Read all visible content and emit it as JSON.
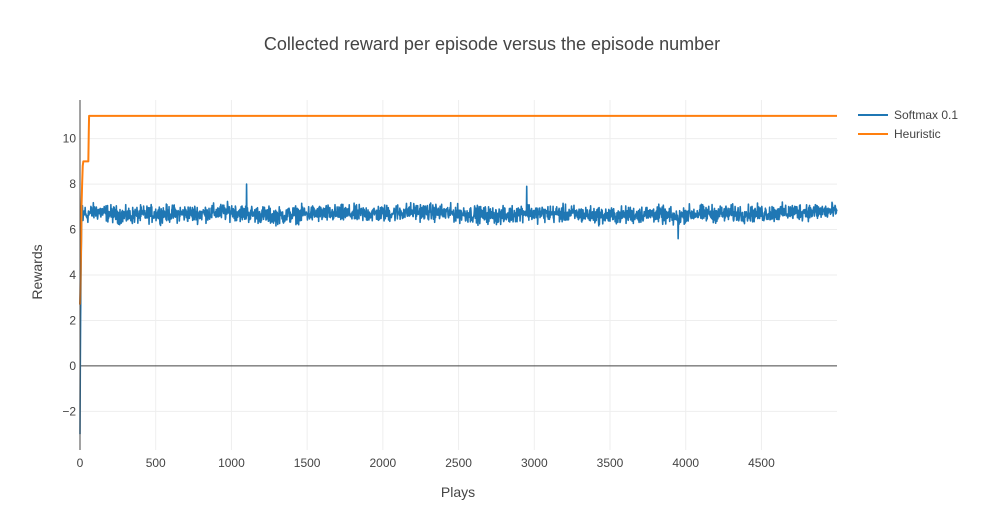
{
  "chart_data": {
    "type": "line",
    "title": "Collected reward per episode versus the episode number",
    "xlabel": "Plays",
    "ylabel": "Rewards",
    "xlim": [
      0,
      4999
    ],
    "ylim": [
      -3.7,
      11.7
    ],
    "x_ticks": [
      0,
      500,
      1000,
      1500,
      2000,
      2500,
      3000,
      3500,
      4000,
      4500
    ],
    "y_ticks": [
      -2,
      0,
      2,
      4,
      6,
      8,
      10
    ],
    "grid": true,
    "zero_line": true,
    "legend": "top-right",
    "series": [
      {
        "name": "Softmax 0.1",
        "color": "#1f77b4",
        "description": "noisy reward, rising from about -3 at play 0 to a steady band around 6.7 (range ~5.6 to ~8.0) from roughly play 10 onward",
        "x": [
          0,
          3,
          6,
          10,
          15,
          20,
          30,
          40,
          60,
          100,
          200,
          300,
          500,
          800,
          1000,
          1100,
          1300,
          1500,
          1800,
          2000,
          2200,
          2500,
          2800,
          2950,
          3000,
          3200,
          3500,
          3800,
          3950,
          4000,
          4200,
          4500,
          4800,
          4999
        ],
        "y": [
          -3.0,
          1.5,
          3.5,
          6.0,
          7.0,
          6.5,
          6.8,
          6.6,
          6.7,
          6.8,
          6.7,
          6.6,
          6.7,
          6.7,
          6.8,
          6.7,
          6.6,
          6.7,
          6.7,
          6.7,
          6.8,
          6.7,
          6.6,
          6.8,
          6.7,
          6.7,
          6.6,
          6.7,
          6.5,
          6.7,
          6.7,
          6.7,
          6.8,
          6.8
        ],
        "noise_amplitude": 0.55,
        "peaks": [
          {
            "x": 1100,
            "y": 8.0
          },
          {
            "x": 2950,
            "y": 7.9
          },
          {
            "x": 3950,
            "y": 5.6
          }
        ]
      },
      {
        "name": "Heuristic",
        "color": "#ff7f0e",
        "x": [
          0,
          2,
          5,
          8,
          10,
          14,
          18,
          22,
          28,
          35,
          45,
          50,
          55,
          58,
          60,
          65,
          4999
        ],
        "y": [
          2.7,
          3.2,
          4.5,
          5.5,
          7.0,
          8.0,
          8.8,
          9.0,
          9.0,
          9.0,
          9.0,
          9.0,
          9.0,
          10.3,
          11.0,
          11.0,
          11.0
        ]
      }
    ]
  }
}
